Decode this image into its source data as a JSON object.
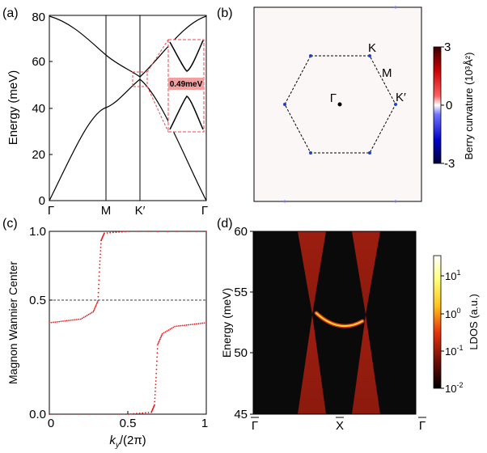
{
  "panels": {
    "a": {
      "label": "(a)",
      "ylabel": "Energy (meV)",
      "yticks": [
        "0",
        "20",
        "40",
        "60",
        "80"
      ],
      "xticks": [
        "Γ",
        "M",
        "K′",
        "Γ"
      ],
      "inset_label": "0.49meV"
    },
    "b": {
      "label": "(b)",
      "points": {
        "gamma": "Γ",
        "k": "K",
        "m": "M",
        "kprime": "K′"
      },
      "colorbar": {
        "ticks": [
          "3",
          "0",
          "-3"
        ],
        "label": "Berry curvature (10³Å²)"
      }
    },
    "c": {
      "label": "(c)",
      "ylabel": "Magnon Wannier Center",
      "xlabel": "k_y/(2π)",
      "xlabel_main": "k",
      "xlabel_sub": "y",
      "xlabel_rest": "/(2π)",
      "yticks": [
        "0.0",
        "0.5",
        "1.0"
      ],
      "xticks": [
        "0",
        "0.5",
        "1"
      ]
    },
    "d": {
      "label": "(d)",
      "ylabel": "Energy (meV)",
      "yticks": [
        "45",
        "50",
        "55",
        "60"
      ],
      "xticks": [
        "Γ",
        "X",
        "Γ"
      ],
      "colorbar": {
        "ticks": [
          "10¹",
          "10⁰",
          "10⁻¹",
          "10⁻²"
        ],
        "tick_base": "10",
        "tick_exp": [
          "1",
          "0",
          "-1",
          "-2"
        ],
        "label": "LDOS (a.u.)"
      }
    }
  },
  "chart_data": [
    {
      "type": "line",
      "panel": "a",
      "ylabel": "Energy (meV)",
      "ylim": [
        0,
        80
      ],
      "categories": [
        "Γ",
        "M",
        "K′",
        "Γ"
      ],
      "series": [
        {
          "values": [
            80,
            63.5,
            54,
            80
          ]
        },
        {
          "values": [
            0,
            41,
            52,
            0
          ]
        }
      ]
    },
    {
      "type": "scatter",
      "panel": "c",
      "ylabel": "Magnon Wannier Center",
      "xlabel": "k_y/(2π)",
      "xlim": [
        0,
        1
      ],
      "ylim": [
        0,
        1
      ],
      "series": [
        {
          "x": [
            0,
            0.1,
            0.2,
            0.28,
            0.31,
            0.32,
            0.33,
            0.35,
            0.5,
            1
          ],
          "values": [
            0.5,
            0.51,
            0.52,
            0.56,
            0.62,
            0.8,
            0.95,
            0.99,
            1.0,
            1.0
          ]
        },
        {
          "x": [
            0,
            0.5,
            0.65,
            0.67,
            0.68,
            0.69,
            0.72,
            0.8,
            0.9,
            1
          ],
          "values": [
            0.0,
            0.0,
            0.01,
            0.05,
            0.2,
            0.38,
            0.44,
            0.48,
            0.49,
            0.5
          ]
        }
      ]
    },
    {
      "type": "heatmap",
      "panel": "d",
      "ylabel": "Energy (meV)",
      "ylim": [
        45,
        60
      ],
      "categories": [
        "Γ",
        "X",
        "Γ"
      ]
    }
  ],
  "colors": {
    "curve": "#000000",
    "dashed_red": "#e8474f",
    "points": "#e8161b",
    "hex_vertex": "#1f3fd1",
    "heatmap_bg": "#0a0a0a",
    "heatmap_cone": "#8b1a0d",
    "heatmap_edge": "#ffd23a"
  }
}
